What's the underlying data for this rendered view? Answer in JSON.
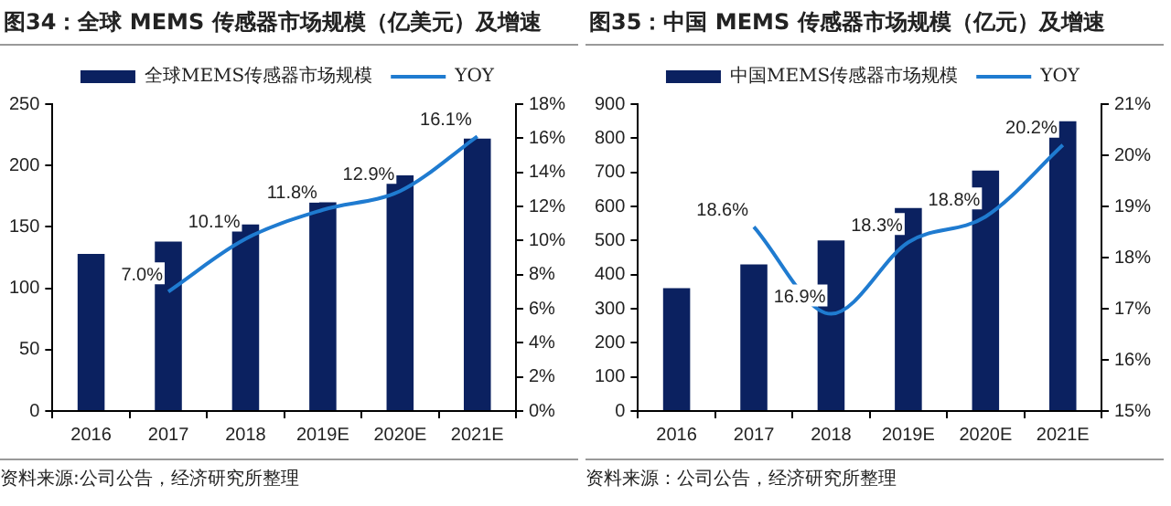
{
  "chart_data": [
    {
      "type": "bar",
      "title": "图34：全球 MEMS 传感器市场规模（亿美元）及增速",
      "categories": [
        "2016",
        "2017",
        "2018",
        "2019E",
        "2020E",
        "2021E"
      ],
      "series": [
        {
          "name": "全球MEMS传感器市场规模",
          "color": "#0b2160",
          "values": [
            128,
            138,
            152,
            170,
            192,
            222
          ]
        },
        {
          "name": "YOY",
          "type": "line",
          "axis": "y2",
          "color": "#1f7bd0",
          "values": [
            null,
            7.0,
            10.1,
            11.8,
            12.9,
            16.1
          ],
          "value_labels": [
            null,
            "7.0%",
            "10.1%",
            "11.8%",
            "12.9%",
            "16.1%"
          ]
        }
      ],
      "ylim": [
        0,
        250
      ],
      "yticks": [
        0,
        50,
        100,
        150,
        200,
        250
      ],
      "y2lim": [
        0,
        18
      ],
      "y2ticks": [
        {
          "value": 0,
          "label": "0%"
        },
        {
          "value": 2,
          "label": "2%"
        },
        {
          "value": 4,
          "label": "4%"
        },
        {
          "value": 6,
          "label": "6%"
        },
        {
          "value": 8,
          "label": "8%"
        },
        {
          "value": 10,
          "label": "10%"
        },
        {
          "value": 12,
          "label": "12%"
        },
        {
          "value": 14,
          "label": "14%"
        },
        {
          "value": 16,
          "label": "16%"
        },
        {
          "value": 18,
          "label": "18%"
        }
      ],
      "legend": "top",
      "grid": false,
      "marker": "none",
      "annotations": [
        "资料来源:公司公告，经济研究所整理"
      ]
    },
    {
      "type": "bar",
      "title": "图35：中国 MEMS 传感器市场规模（亿元）及增速",
      "categories": [
        "2016",
        "2017",
        "2018",
        "2019E",
        "2020E",
        "2021E"
      ],
      "series": [
        {
          "name": "中国MEMS传感器市场规模",
          "color": "#0b2160",
          "values": [
            360,
            430,
            500,
            595,
            705,
            850
          ]
        },
        {
          "name": "YOY",
          "type": "line",
          "axis": "y2",
          "color": "#1f7bd0",
          "values": [
            null,
            18.6,
            16.9,
            18.3,
            18.8,
            20.2
          ],
          "value_labels": [
            null,
            "18.6%",
            "16.9%",
            "18.3%",
            "18.8%",
            "20.2%"
          ]
        }
      ],
      "ylim": [
        0,
        900
      ],
      "yticks": [
        0,
        100,
        200,
        300,
        400,
        500,
        600,
        700,
        800,
        900
      ],
      "y2lim": [
        15,
        21
      ],
      "y2ticks": [
        {
          "value": 15,
          "label": "15%"
        },
        {
          "value": 16,
          "label": "16%"
        },
        {
          "value": 17,
          "label": "17%"
        },
        {
          "value": 18,
          "label": "18%"
        },
        {
          "value": 19,
          "label": "19%"
        },
        {
          "value": 20,
          "label": "20%"
        },
        {
          "value": 21,
          "label": "21%"
        }
      ],
      "legend": "top",
      "grid": false,
      "marker": "none",
      "annotations": [
        "资料来源：公司公告，经济研究所整理"
      ]
    }
  ]
}
